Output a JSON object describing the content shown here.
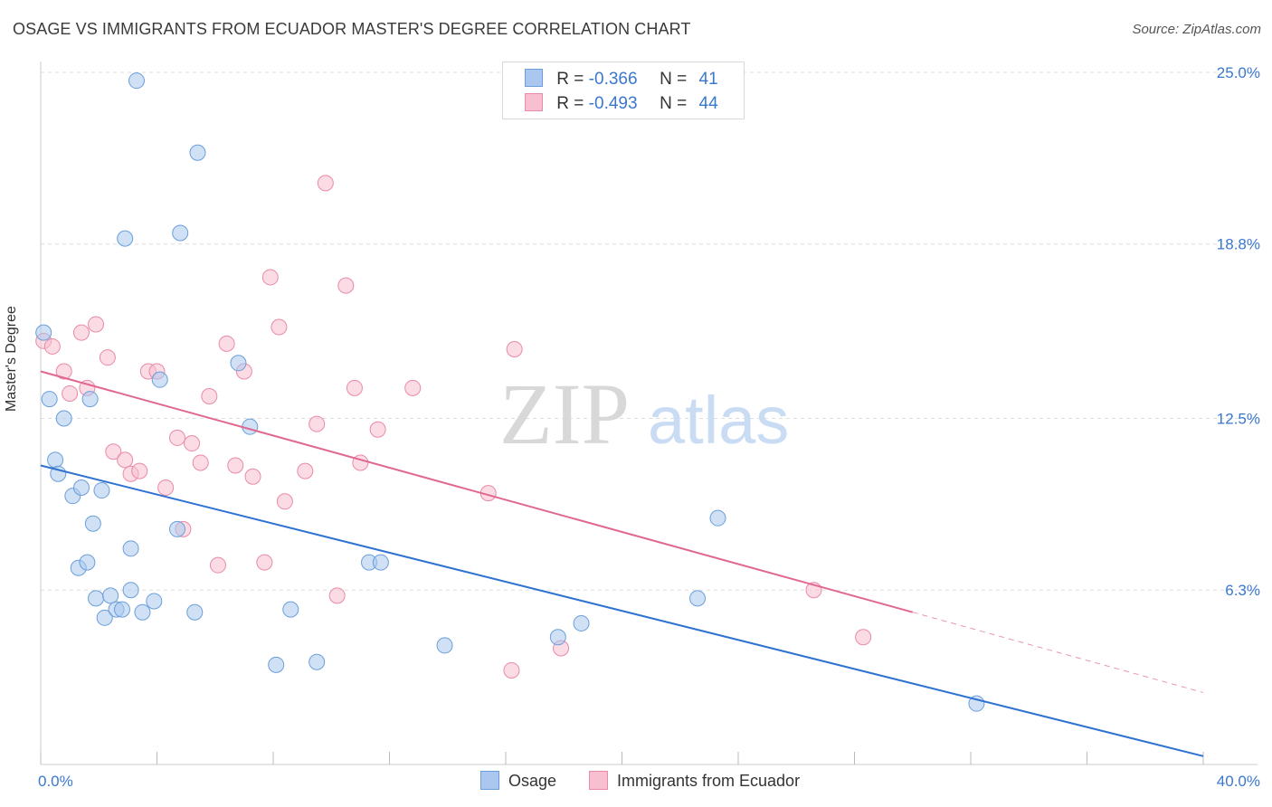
{
  "title": "OSAGE VS IMMIGRANTS FROM ECUADOR MASTER'S DEGREE CORRELATION CHART",
  "source": "Source: ZipAtlas.com",
  "watermark": {
    "zip": "ZIP",
    "atlas": "atlas"
  },
  "legend": {
    "series": [
      {
        "r_label": "R =",
        "r_value": "-0.366",
        "n_label": "N =",
        "n_value": "41"
      },
      {
        "r_label": "R =",
        "r_value": "-0.493",
        "n_label": "N =",
        "n_value": "44"
      }
    ]
  },
  "colors": {
    "osage_fill": "#aac8ef",
    "osage_stroke": "#6a9fd9",
    "osage_line": "#2f72d0",
    "ecuador_fill": "#f7bfd0",
    "ecuador_stroke": "#e98aa8",
    "ecuador_line": "#e06890",
    "tick_label": "#3a78d0",
    "grid": "#dddddd"
  },
  "chart_data": {
    "type": "scatter",
    "title": "OSAGE VS IMMIGRANTS FROM ECUADOR MASTER'S DEGREE CORRELATION CHART",
    "xlabel": "",
    "ylabel": "Master's Degree",
    "xlim": [
      0,
      40
    ],
    "ylim": [
      0,
      25
    ],
    "x_tick_labels": [
      "0.0%",
      "40.0%"
    ],
    "y_ticks": [
      6.3,
      12.5,
      18.8,
      25.0
    ],
    "y_tick_labels": [
      "6.3%",
      "12.5%",
      "18.8%",
      "25.0%"
    ],
    "grid": true,
    "series": [
      {
        "name": "Osage",
        "r": -0.366,
        "n": 41,
        "trend": {
          "x0": 0,
          "y0": 10.8,
          "x1": 40,
          "y1": 0.3
        },
        "points": [
          [
            0.1,
            15.6
          ],
          [
            0.3,
            13.2
          ],
          [
            0.5,
            11.0
          ],
          [
            0.6,
            10.5
          ],
          [
            0.8,
            12.5
          ],
          [
            1.1,
            9.7
          ],
          [
            1.3,
            7.1
          ],
          [
            1.4,
            10.0
          ],
          [
            1.6,
            7.3
          ],
          [
            1.7,
            13.2
          ],
          [
            1.8,
            8.7
          ],
          [
            1.9,
            6.0
          ],
          [
            2.1,
            9.9
          ],
          [
            2.2,
            5.3
          ],
          [
            2.4,
            6.1
          ],
          [
            2.6,
            5.6
          ],
          [
            2.8,
            5.6
          ],
          [
            2.9,
            19.0
          ],
          [
            3.1,
            6.3
          ],
          [
            3.1,
            7.8
          ],
          [
            3.3,
            24.7
          ],
          [
            3.5,
            5.5
          ],
          [
            3.9,
            5.9
          ],
          [
            4.1,
            13.9
          ],
          [
            4.7,
            8.5
          ],
          [
            4.8,
            19.2
          ],
          [
            5.3,
            5.5
          ],
          [
            5.4,
            22.1
          ],
          [
            6.8,
            14.5
          ],
          [
            7.2,
            12.2
          ],
          [
            8.1,
            3.6
          ],
          [
            8.6,
            5.6
          ],
          [
            9.5,
            3.7
          ],
          [
            11.3,
            7.3
          ],
          [
            11.7,
            7.3
          ],
          [
            13.9,
            4.3
          ],
          [
            17.8,
            4.6
          ],
          [
            18.6,
            5.1
          ],
          [
            22.6,
            6.0
          ],
          [
            23.3,
            8.9
          ],
          [
            32.2,
            2.2
          ]
        ]
      },
      {
        "name": "Immigrants from Ecuador",
        "r": -0.493,
        "n": 44,
        "trend": {
          "x0": 0,
          "y0": 14.2,
          "x1": 30,
          "y1": 5.5,
          "dash_x1": 40,
          "dash_y1": 2.6
        },
        "points": [
          [
            0.1,
            15.3
          ],
          [
            0.4,
            15.1
          ],
          [
            0.8,
            14.2
          ],
          [
            1.0,
            13.4
          ],
          [
            1.4,
            15.6
          ],
          [
            1.6,
            13.6
          ],
          [
            1.9,
            15.9
          ],
          [
            2.3,
            14.7
          ],
          [
            2.5,
            11.3
          ],
          [
            2.9,
            11.0
          ],
          [
            3.1,
            10.5
          ],
          [
            3.4,
            10.6
          ],
          [
            3.7,
            14.2
          ],
          [
            4.0,
            14.2
          ],
          [
            4.3,
            10.0
          ],
          [
            4.7,
            11.8
          ],
          [
            4.9,
            8.5
          ],
          [
            5.2,
            11.6
          ],
          [
            5.5,
            10.9
          ],
          [
            5.8,
            13.3
          ],
          [
            6.1,
            7.2
          ],
          [
            6.4,
            15.2
          ],
          [
            6.7,
            10.8
          ],
          [
            7.0,
            14.2
          ],
          [
            7.3,
            10.4
          ],
          [
            7.7,
            7.3
          ],
          [
            7.9,
            17.6
          ],
          [
            8.2,
            15.8
          ],
          [
            8.4,
            9.5
          ],
          [
            9.1,
            10.6
          ],
          [
            9.5,
            12.3
          ],
          [
            9.8,
            21.0
          ],
          [
            10.2,
            6.1
          ],
          [
            10.5,
            17.3
          ],
          [
            10.8,
            13.6
          ],
          [
            11.0,
            10.9
          ],
          [
            11.6,
            12.1
          ],
          [
            12.8,
            13.6
          ],
          [
            15.4,
            9.8
          ],
          [
            16.2,
            3.4
          ],
          [
            16.3,
            15.0
          ],
          [
            17.9,
            4.2
          ],
          [
            26.6,
            6.3
          ],
          [
            28.3,
            4.6
          ]
        ]
      }
    ]
  },
  "x_axis": {
    "left_label": "0.0%",
    "right_label": "40.0%"
  },
  "bottom_legend": [
    {
      "label": "Osage"
    },
    {
      "label": "Immigrants from Ecuador"
    }
  ]
}
